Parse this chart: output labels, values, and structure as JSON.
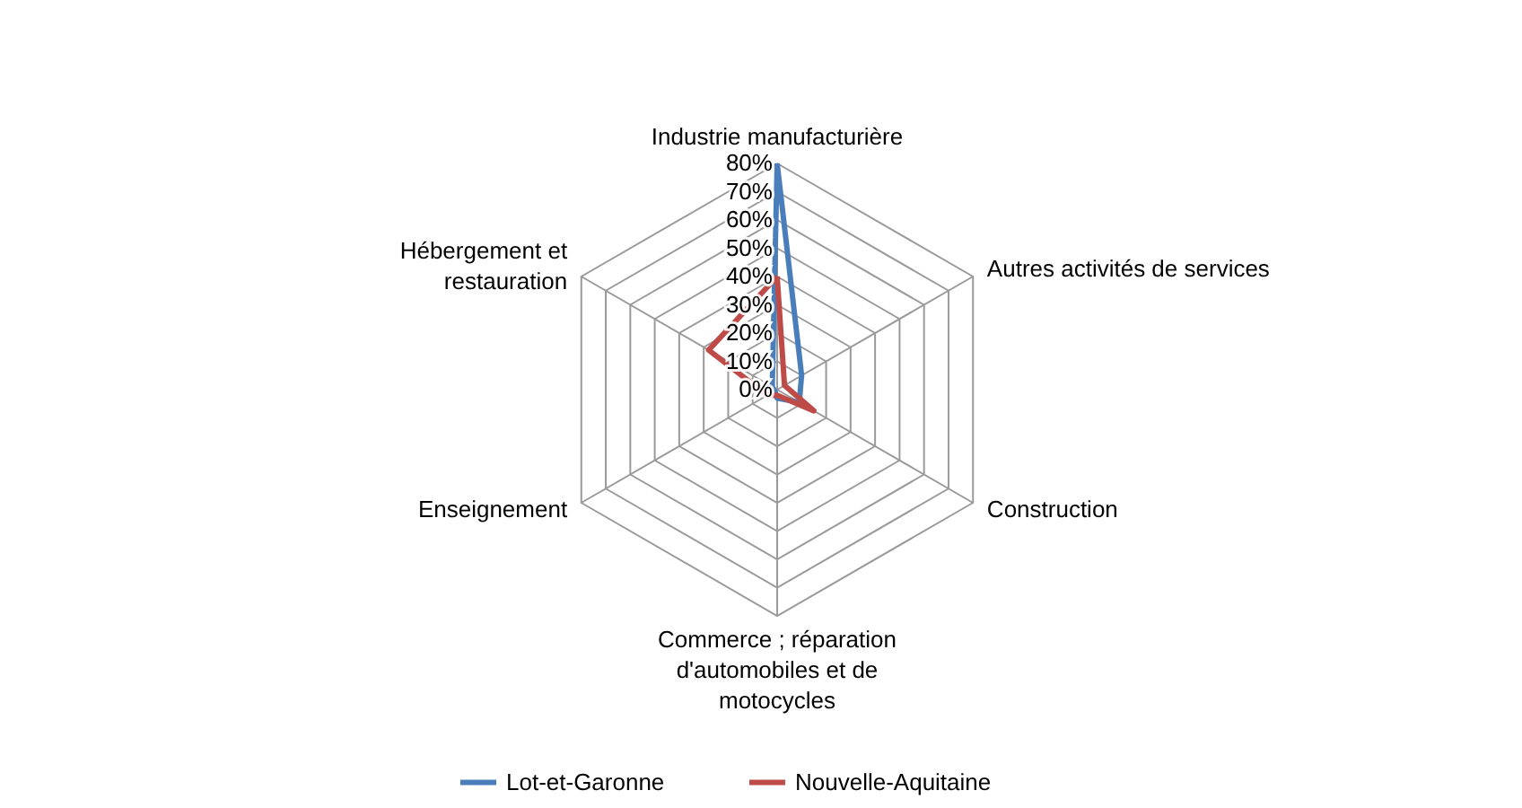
{
  "chart_data": {
    "type": "radar",
    "categories": [
      "Industrie manufacturière",
      "Autres activités de services",
      "Construction",
      "Commerce ; réparation d'automobiles et de motocycles",
      "Enseignement",
      "Hébergement et restauration"
    ],
    "series": [
      {
        "name": "Lot-et-Garonne",
        "color": "#4a7ebb",
        "values": [
          80,
          10,
          9,
          3,
          1,
          2
        ]
      },
      {
        "name": "Nouvelle-Aquitaine",
        "color": "#be4b48",
        "values": [
          40,
          3,
          15,
          2,
          4,
          28
        ]
      }
    ],
    "ylim": [
      0,
      80
    ],
    "yticks": [
      {
        "value": 0,
        "label": "0%"
      },
      {
        "value": 10,
        "label": "10%"
      },
      {
        "value": 20,
        "label": "20%"
      },
      {
        "value": 30,
        "label": "30%"
      },
      {
        "value": 40,
        "label": "40%"
      },
      {
        "value": 50,
        "label": "50%"
      },
      {
        "value": 60,
        "label": "60%"
      },
      {
        "value": 70,
        "label": "70%"
      },
      {
        "value": 80,
        "label": "80%"
      }
    ],
    "grid": true,
    "legend": "bottom"
  }
}
